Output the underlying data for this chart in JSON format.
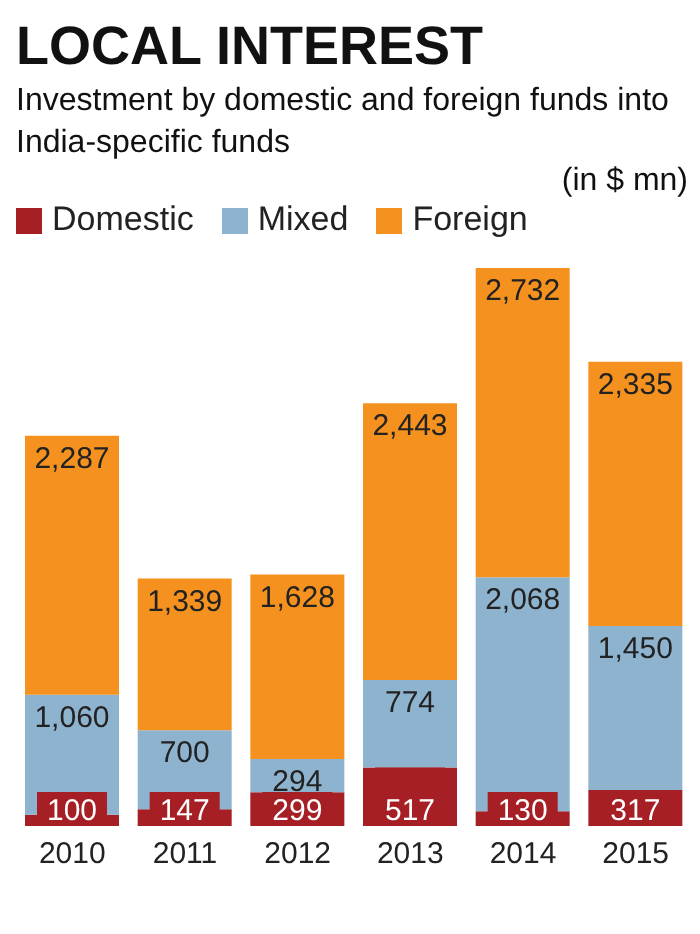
{
  "chart_data": {
    "type": "bar",
    "title": "LOCAL INTEREST",
    "subtitle": "Investment by domestic and foreign funds into India-specific funds",
    "ylabel": "(in $ mn)",
    "categories": [
      "2010",
      "2011",
      "2012",
      "2013",
      "2014",
      "2015"
    ],
    "stacked": true,
    "legend": "top left",
    "grid": false,
    "series": [
      {
        "name": "Domestic",
        "color": "#a51f24",
        "values": [
          100,
          147,
          299,
          517,
          130,
          317
        ],
        "value_labels": [
          "100",
          "147",
          "299",
          "517",
          "130",
          "317"
        ]
      },
      {
        "name": "Mixed",
        "color": "#8eb3cf",
        "values": [
          1060,
          700,
          294,
          774,
          2068,
          1450
        ],
        "value_labels": [
          "1,060",
          "700",
          "294",
          "774",
          "2,068",
          "1,450"
        ]
      },
      {
        "name": "Foreign",
        "color": "#f5921f",
        "values": [
          2287,
          1339,
          1628,
          2443,
          2732,
          2335
        ],
        "value_labels": [
          "2,287",
          "1,339",
          "1,628",
          "2,443",
          "2,732",
          "2,335"
        ]
      }
    ]
  }
}
